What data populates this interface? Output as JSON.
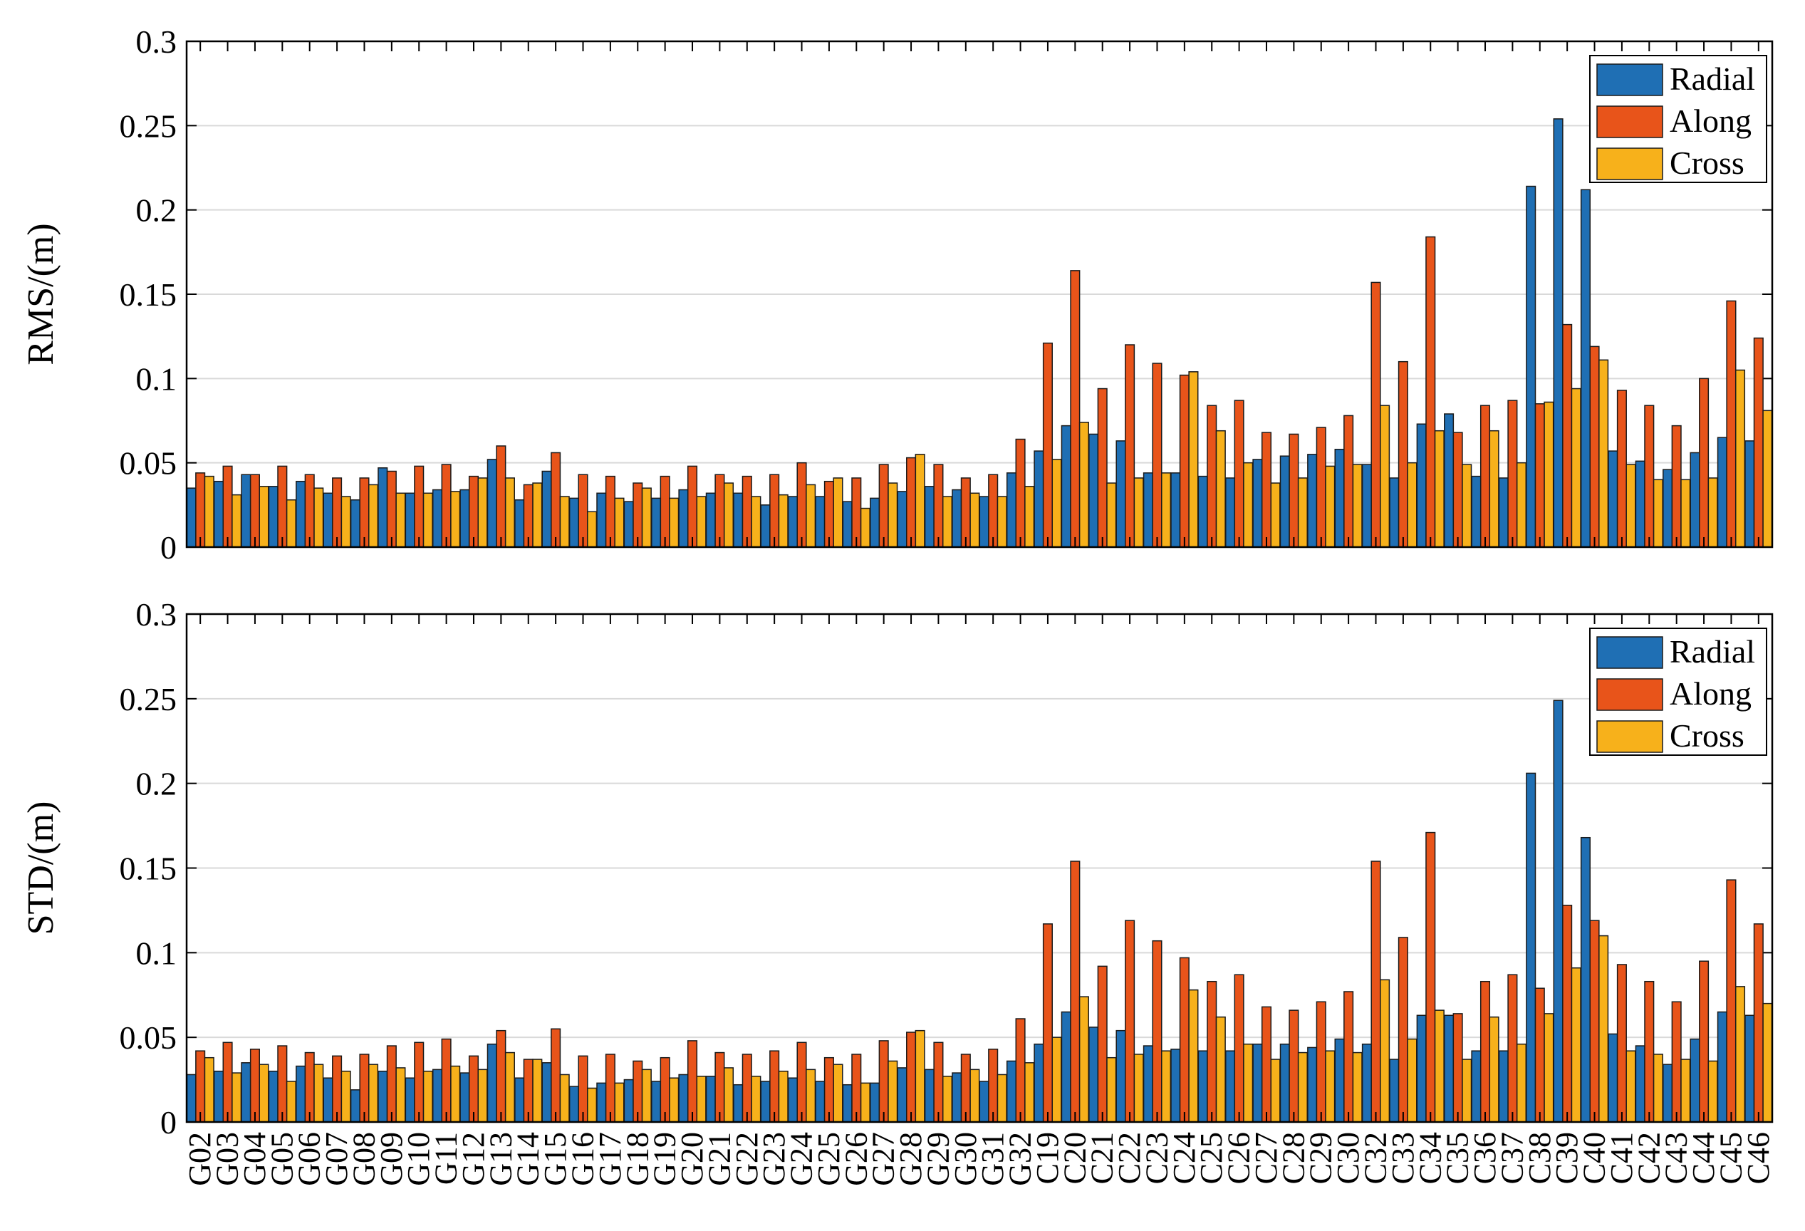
{
  "colors": {
    "Radial": "#1f6fb4",
    "Along": "#e8541a",
    "Cross": "#f7b11b"
  },
  "chart_data": [
    {
      "type": "bar",
      "ylabel": "RMS/(m)",
      "ylim": [
        0,
        0.3
      ],
      "yticks": [
        "0",
        "0.05",
        "0.1",
        "0.15",
        "0.2",
        "0.25",
        "0.3"
      ],
      "grid": "horizontal",
      "legend": "top-right",
      "categories": [
        "G02",
        "G03",
        "G04",
        "G05",
        "G06",
        "G07",
        "G08",
        "G09",
        "G10",
        "G11",
        "G12",
        "G13",
        "G14",
        "G15",
        "G16",
        "G17",
        "G18",
        "G19",
        "G20",
        "G21",
        "G22",
        "G23",
        "G24",
        "G25",
        "G26",
        "G27",
        "G28",
        "G29",
        "G30",
        "G31",
        "G32",
        "C19",
        "C20",
        "C21",
        "C22",
        "C23",
        "C24",
        "C25",
        "C26",
        "C27",
        "C28",
        "C29",
        "C30",
        "C32",
        "C33",
        "C34",
        "C35",
        "C36",
        "C37",
        "C38",
        "C39",
        "C40",
        "C41",
        "C42",
        "C43",
        "C44",
        "C45",
        "C46"
      ],
      "series": [
        {
          "name": "Radial",
          "values": [
            0.035,
            0.039,
            0.043,
            0.036,
            0.039,
            0.032,
            0.028,
            0.047,
            0.032,
            0.034,
            0.034,
            0.052,
            0.028,
            0.045,
            0.029,
            0.032,
            0.027,
            0.029,
            0.034,
            0.032,
            0.032,
            0.025,
            0.03,
            0.03,
            0.027,
            0.029,
            0.033,
            0.036,
            0.034,
            0.03,
            0.044,
            0.057,
            0.072,
            0.067,
            0.063,
            0.044,
            0.044,
            0.042,
            0.041,
            0.052,
            0.054,
            0.055,
            0.058,
            0.049,
            0.041,
            0.073,
            0.079,
            0.042,
            0.041,
            0.214,
            0.254,
            0.212,
            0.057,
            0.051,
            0.046,
            0.056,
            0.065,
            0.063
          ]
        },
        {
          "name": "Along",
          "values": [
            0.044,
            0.048,
            0.043,
            0.048,
            0.043,
            0.041,
            0.041,
            0.045,
            0.048,
            0.049,
            0.042,
            0.06,
            0.037,
            0.056,
            0.043,
            0.042,
            0.038,
            0.042,
            0.048,
            0.043,
            0.042,
            0.043,
            0.05,
            0.039,
            0.041,
            0.049,
            0.053,
            0.049,
            0.041,
            0.043,
            0.064,
            0.121,
            0.164,
            0.094,
            0.12,
            0.109,
            0.102,
            0.084,
            0.087,
            0.068,
            0.067,
            0.071,
            0.078,
            0.157,
            0.11,
            0.184,
            0.068,
            0.084,
            0.087,
            0.085,
            0.132,
            0.119,
            0.093,
            0.084,
            0.072,
            0.1,
            0.146,
            0.124
          ]
        },
        {
          "name": "Cross",
          "values": [
            0.042,
            0.031,
            0.036,
            0.028,
            0.035,
            0.03,
            0.037,
            0.032,
            0.032,
            0.033,
            0.041,
            0.041,
            0.038,
            0.03,
            0.021,
            0.029,
            0.035,
            0.029,
            0.03,
            0.038,
            0.03,
            0.031,
            0.037,
            0.041,
            0.023,
            0.038,
            0.055,
            0.03,
            0.032,
            0.03,
            0.036,
            0.052,
            0.074,
            0.038,
            0.041,
            0.044,
            0.104,
            0.069,
            0.05,
            0.038,
            0.041,
            0.048,
            0.049,
            0.084,
            0.05,
            0.069,
            0.049,
            0.069,
            0.05,
            0.086,
            0.094,
            0.111,
            0.049,
            0.04,
            0.04,
            0.041,
            0.105,
            0.081
          ]
        }
      ]
    },
    {
      "type": "bar",
      "ylabel": "STD/(m)",
      "ylim": [
        0,
        0.3
      ],
      "yticks": [
        "0",
        "0.05",
        "0.1",
        "0.15",
        "0.2",
        "0.25",
        "0.3"
      ],
      "grid": "horizontal",
      "legend": "top-right",
      "categories": [
        "G02",
        "G03",
        "G04",
        "G05",
        "G06",
        "G07",
        "G08",
        "G09",
        "G10",
        "G11",
        "G12",
        "G13",
        "G14",
        "G15",
        "G16",
        "G17",
        "G18",
        "G19",
        "G20",
        "G21",
        "G22",
        "G23",
        "G24",
        "G25",
        "G26",
        "G27",
        "G28",
        "G29",
        "G30",
        "G31",
        "G32",
        "C19",
        "C20",
        "C21",
        "C22",
        "C23",
        "C24",
        "C25",
        "C26",
        "C27",
        "C28",
        "C29",
        "C30",
        "C32",
        "C33",
        "C34",
        "C35",
        "C36",
        "C37",
        "C38",
        "C39",
        "C40",
        "C41",
        "C42",
        "C43",
        "C44",
        "C45",
        "C46"
      ],
      "series": [
        {
          "name": "Radial",
          "values": [
            0.028,
            0.03,
            0.035,
            0.03,
            0.033,
            0.026,
            0.019,
            0.03,
            0.026,
            0.031,
            0.029,
            0.046,
            0.026,
            0.035,
            0.021,
            0.023,
            0.025,
            0.024,
            0.028,
            0.027,
            0.022,
            0.024,
            0.026,
            0.024,
            0.022,
            0.023,
            0.032,
            0.031,
            0.029,
            0.024,
            0.036,
            0.046,
            0.065,
            0.056,
            0.054,
            0.045,
            0.043,
            0.042,
            0.042,
            0.046,
            0.046,
            0.044,
            0.049,
            0.046,
            0.037,
            0.063,
            0.063,
            0.042,
            0.042,
            0.206,
            0.249,
            0.168,
            0.052,
            0.045,
            0.034,
            0.049,
            0.065,
            0.063
          ]
        },
        {
          "name": "Along",
          "values": [
            0.042,
            0.047,
            0.043,
            0.045,
            0.041,
            0.039,
            0.04,
            0.045,
            0.047,
            0.049,
            0.039,
            0.054,
            0.037,
            0.055,
            0.039,
            0.04,
            0.036,
            0.038,
            0.048,
            0.041,
            0.04,
            0.042,
            0.047,
            0.038,
            0.04,
            0.048,
            0.053,
            0.047,
            0.04,
            0.043,
            0.061,
            0.117,
            0.154,
            0.092,
            0.119,
            0.107,
            0.097,
            0.083,
            0.087,
            0.068,
            0.066,
            0.071,
            0.077,
            0.154,
            0.109,
            0.171,
            0.064,
            0.083,
            0.087,
            0.079,
            0.128,
            0.119,
            0.093,
            0.083,
            0.071,
            0.095,
            0.143,
            0.117
          ]
        },
        {
          "name": "Cross",
          "values": [
            0.038,
            0.029,
            0.034,
            0.024,
            0.034,
            0.03,
            0.034,
            0.032,
            0.03,
            0.033,
            0.031,
            0.041,
            0.037,
            0.028,
            0.02,
            0.023,
            0.031,
            0.026,
            0.027,
            0.032,
            0.027,
            0.03,
            0.031,
            0.034,
            0.023,
            0.036,
            0.054,
            0.027,
            0.031,
            0.028,
            0.035,
            0.05,
            0.074,
            0.038,
            0.04,
            0.042,
            0.078,
            0.062,
            0.046,
            0.037,
            0.041,
            0.042,
            0.041,
            0.084,
            0.049,
            0.066,
            0.037,
            0.062,
            0.046,
            0.064,
            0.091,
            0.11,
            0.042,
            0.04,
            0.037,
            0.036,
            0.08,
            0.07
          ]
        }
      ]
    }
  ]
}
